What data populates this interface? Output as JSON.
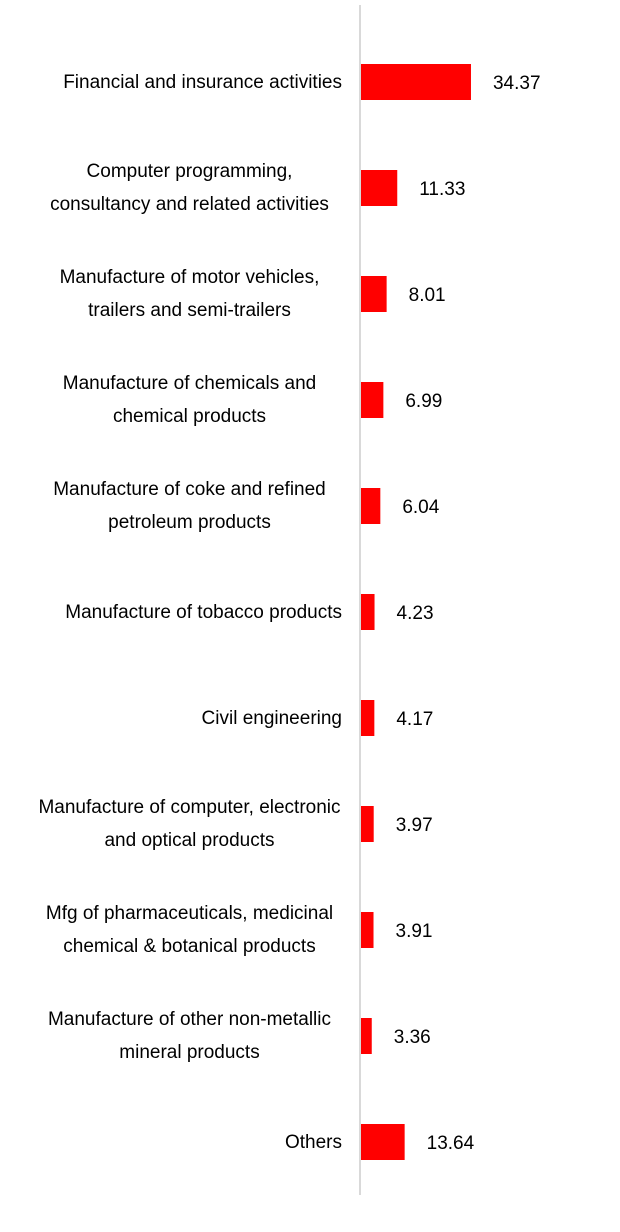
{
  "chart_data": {
    "type": "bar",
    "orientation": "horizontal",
    "color": "#ff0000",
    "categories": [
      "Financial and insurance activities",
      "Computer programming, consultancy and related activities",
      "Manufacture of motor vehicles, trailers and semi-trailers",
      "Manufacture of chemicals and chemical products",
      "Manufacture of coke and refined petroleum products",
      "Manufacture of tobacco products",
      "Civil engineering",
      "Manufacture of computer, electronic and optical products",
      "Mfg of pharmaceuticals, medicinal chemical & botanical products",
      "Manufacture of other non-metallic mineral products",
      "Others"
    ],
    "values": [
      34.37,
      11.33,
      8.01,
      6.99,
      6.04,
      4.23,
      4.17,
      3.97,
      3.91,
      3.36,
      13.64
    ]
  }
}
